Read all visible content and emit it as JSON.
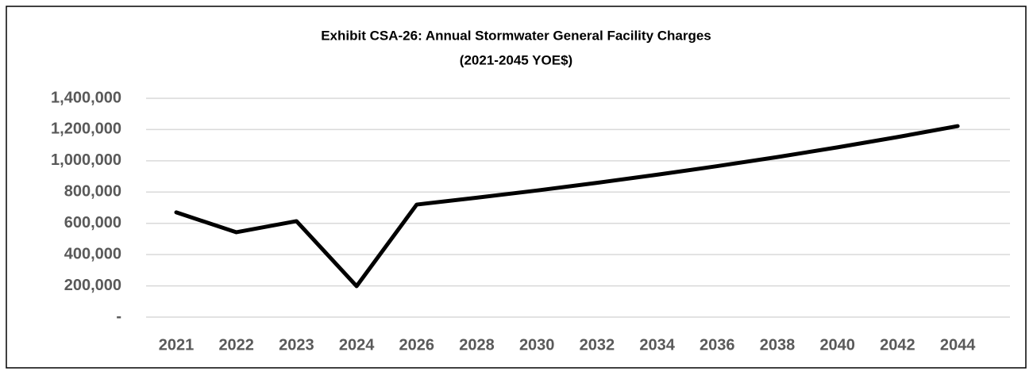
{
  "chart_data": {
    "type": "line",
    "title": "Exhibit CSA-26: Annual Stormwater General Facility Charges",
    "subtitle": "(2021-2045 YOE$)",
    "categories": [
      "2021",
      "2022",
      "2023",
      "2024",
      "2026",
      "2028",
      "2030",
      "2032",
      "2034",
      "2036",
      "2038",
      "2040",
      "2042",
      "2044"
    ],
    "series": [
      {
        "name": "Annual Stormwater General Facility Charges",
        "color": "#000000",
        "values": [
          670000,
          543000,
          614000,
          198000,
          720000,
          764000,
          810000,
          859000,
          911000,
          966000,
          1024000,
          1086000,
          1152000,
          1222000
        ]
      }
    ],
    "ylim": [
      0,
      1400000
    ],
    "yticks": [
      {
        "value": 0,
        "label": "-"
      },
      {
        "value": 200000,
        "label": "200,000"
      },
      {
        "value": 400000,
        "label": "400,000"
      },
      {
        "value": 600000,
        "label": "600,000"
      },
      {
        "value": 800000,
        "label": "800,000"
      },
      {
        "value": 1000000,
        "label": "1,000,000"
      },
      {
        "value": 1200000,
        "label": "1,200,000"
      },
      {
        "value": 1400000,
        "label": "1,400,000"
      }
    ],
    "grid": true
  }
}
